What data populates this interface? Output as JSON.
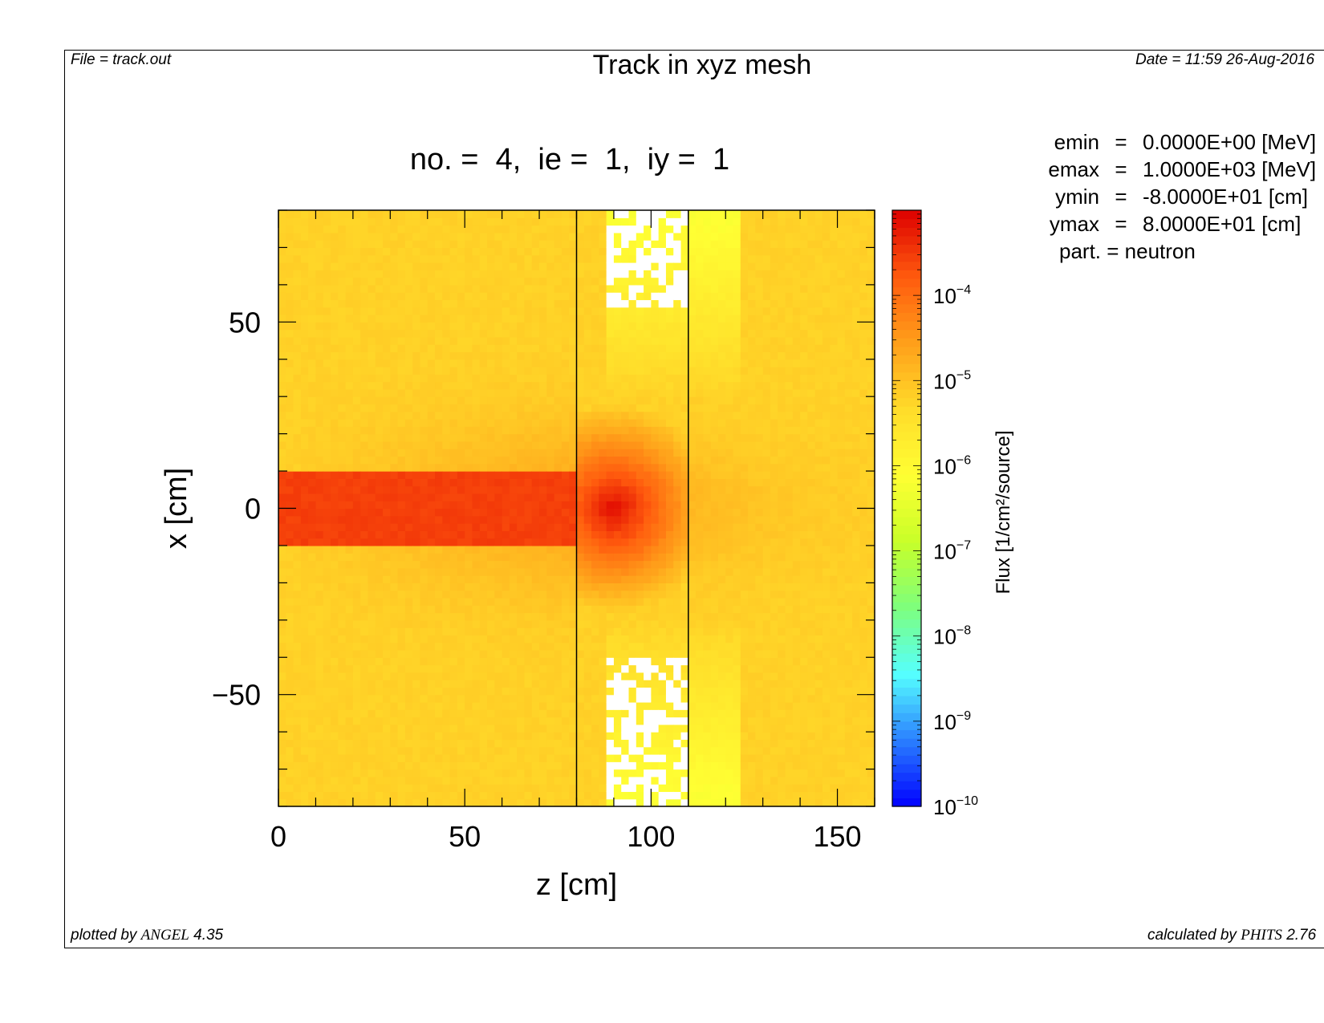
{
  "header": {
    "file": "File = track.out",
    "title": "Track in xyz mesh",
    "date": "Date = 11:59 26-Aug-2016"
  },
  "footer": {
    "plotted_prefix": "plotted by ",
    "plotted_name": "ANGEL",
    "plotted_version": " 4.35",
    "calculated_prefix": "calculated by ",
    "calculated_name": "PHITS",
    "calculated_version": " 2.76"
  },
  "info": [
    {
      "key": "emin",
      "value": "0.0000E+00 [MeV]"
    },
    {
      "key": "emax",
      "value": "1.0000E+03 [MeV]"
    },
    {
      "key": "ymin",
      "value": "-8.0000E+01 [cm]"
    },
    {
      "key": "ymax",
      "value": "8.0000E+01 [cm]"
    }
  ],
  "info_last": "part. = neutron",
  "chart_data": {
    "type": "heatmap",
    "title": "no. =  4,  ie =  1,  iy =  1",
    "xlabel": "z [cm]",
    "ylabel": "x [cm]",
    "xlim": [
      0,
      160
    ],
    "ylim": [
      -80,
      80
    ],
    "xticks": [
      0,
      50,
      100,
      150
    ],
    "xtick_labels": [
      "0",
      "50",
      "100",
      "150"
    ],
    "yticks": [
      -50,
      0,
      50
    ],
    "ytick_labels": [
      "−50",
      "0",
      "50"
    ],
    "boundary_lines_z": [
      80,
      110
    ],
    "colorbar": {
      "label": "Flux [1/cm²/source]",
      "scale": "log",
      "range": [
        1e-10,
        0.001
      ],
      "tick_exponents": [
        -4,
        -5,
        -6,
        -7,
        -8,
        -9,
        -10
      ],
      "colors": [
        "#0000ff",
        "#2a7fff",
        "#55ffff",
        "#7dff7d",
        "#c8ff28",
        "#ffff33",
        "#ffdc2a",
        "#ff9f1a",
        "#ff5a0e",
        "#dd0000"
      ]
    },
    "field": {
      "description_free": true,
      "beam": {
        "z": [
          0,
          80
        ],
        "x": [
          -10,
          10
        ],
        "log10_flux": -3.55
      },
      "hotspot": {
        "z": 90,
        "x": 0,
        "log10_flux": -3.1
      },
      "background_log10_flux": -5.2,
      "void_regions": [
        {
          "z": [
            88,
            110
          ],
          "x": [
            55,
            80
          ]
        },
        {
          "z": [
            88,
            110
          ],
          "x": [
            -80,
            -40
          ]
        }
      ]
    }
  }
}
